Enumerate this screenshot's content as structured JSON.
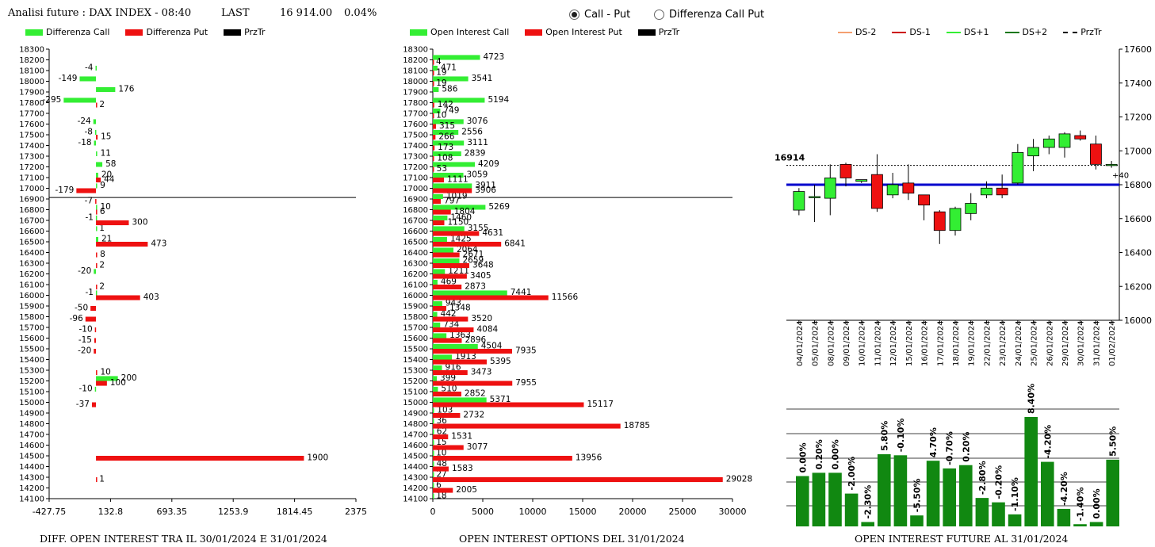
{
  "header": {
    "title": "Analisi future : DAX INDEX - 08:40",
    "last_label": "LAST",
    "last_value": "16 914.00",
    "change": "0.04%"
  },
  "view_toggle": {
    "options": [
      {
        "label": "Call - Put",
        "selected": true
      },
      {
        "label": "Differenza Call Put",
        "selected": false
      }
    ]
  },
  "colors": {
    "green": "#33ee33",
    "red": "#ee1111",
    "dark_green": "#118811",
    "blue": "#0000cc",
    "price_line": "#000000"
  },
  "panel1": {
    "legend": [
      {
        "label": "Differenza Call",
        "color": "#33ee33"
      },
      {
        "label": "Differenza Put",
        "color": "#ee1111"
      },
      {
        "label": "PrzTr",
        "color": "#000000"
      }
    ],
    "footer": "DIFF. OPEN INTEREST TRA IL 30/01/2024 E 31/01/2024"
  },
  "panel2": {
    "legend": [
      {
        "label": "Open Interest Call",
        "color": "#33ee33"
      },
      {
        "label": "Open Interest Put",
        "color": "#ee1111"
      },
      {
        "label": "PrzTr",
        "color": "#000000"
      }
    ],
    "footer": "OPEN INTEREST OPTIONS DEL 31/01/2024"
  },
  "panel3": {
    "legend": [
      {
        "label": "DS-2",
        "color": "#f4a070",
        "style": "solid"
      },
      {
        "label": "DS-1",
        "color": "#cc0000",
        "style": "solid"
      },
      {
        "label": "DS+1",
        "color": "#33ee33",
        "style": "solid"
      },
      {
        "label": "DS+2",
        "color": "#117711",
        "style": "solid"
      },
      {
        "label": "PrzTr",
        "color": "#000000",
        "style": "dashed"
      }
    ]
  },
  "panel4": {
    "footer": "OPEN INTEREST FUTURE AL 31/01/2024"
  },
  "chart_data": [
    {
      "type": "bar",
      "orientation": "horizontal",
      "strikes": [
        "18300",
        "18200",
        "18100",
        "18000",
        "17900",
        "17800",
        "17700",
        "17600",
        "17500",
        "17400",
        "17300",
        "17200",
        "17100",
        "17000",
        "16900",
        "16800",
        "16700",
        "16600",
        "16500",
        "16400",
        "16300",
        "16200",
        "16100",
        "16000",
        "15900",
        "15800",
        "15700",
        "15600",
        "15500",
        "15400",
        "15300",
        "15200",
        "15100",
        "15000",
        "14900",
        "14800",
        "14700",
        "14600",
        "14500",
        "14400",
        "14300",
        "14200",
        "14100"
      ],
      "series": [
        {
          "name": "Differenza Call",
          "values": [
            null,
            null,
            -4,
            -149,
            176,
            -295,
            null,
            -24,
            -8,
            -18,
            11,
            58,
            20,
            9,
            null,
            10,
            -1,
            1,
            21,
            null,
            null,
            -20,
            null,
            -1,
            null,
            null,
            null,
            null,
            null,
            null,
            null,
            200,
            -10,
            null,
            null,
            null,
            null,
            null,
            null,
            null,
            null,
            null,
            null
          ]
        },
        {
          "name": "Differenza Put",
          "values": [
            null,
            null,
            null,
            null,
            null,
            2,
            null,
            null,
            15,
            null,
            null,
            null,
            44,
            -179,
            -7,
            6,
            300,
            null,
            473,
            8,
            2,
            null,
            2,
            403,
            -50,
            -96,
            -10,
            -15,
            -20,
            null,
            10,
            100,
            null,
            -37,
            null,
            null,
            null,
            null,
            1900,
            null,
            1,
            null,
            null
          ]
        }
      ],
      "xlim": [
        -427.75,
        2375
      ],
      "xticks": [
        "-427.75",
        "132.8",
        "693.35",
        "1253.9",
        "1814.45",
        "2375"
      ],
      "price_level": 16914
    },
    {
      "type": "bar",
      "orientation": "horizontal",
      "strikes": [
        "18300",
        "18200",
        "18100",
        "18000",
        "17900",
        "17800",
        "17700",
        "17600",
        "17500",
        "17400",
        "17300",
        "17200",
        "17100",
        "17000",
        "16900",
        "16800",
        "16700",
        "16600",
        "16500",
        "16400",
        "16300",
        "16200",
        "16100",
        "16000",
        "15900",
        "15800",
        "15700",
        "15600",
        "15500",
        "15400",
        "15300",
        "15200",
        "15100",
        "15000",
        "14900",
        "14800",
        "14700",
        "14600",
        "14500",
        "14400",
        "14300",
        "14200",
        "14100"
      ],
      "series": [
        {
          "name": "Open Interest Call",
          "values": [
            null,
            4723,
            471,
            3541,
            586,
            5194,
            749,
            3076,
            2556,
            3111,
            2839,
            4209,
            3059,
            3911,
            1019,
            5269,
            1460,
            3155,
            1425,
            2064,
            2659,
            1211,
            469,
            7441,
            943,
            442,
            734,
            1363,
            4504,
            1913,
            916,
            399,
            510,
            5371,
            103,
            36,
            62,
            15,
            10,
            48,
            27,
            6,
            18
          ]
        },
        {
          "name": "Open Interest Put",
          "values": [
            null,
            4,
            19,
            19,
            null,
            142,
            10,
            315,
            266,
            173,
            108,
            53,
            1111,
            3906,
            797,
            1804,
            1150,
            4631,
            6841,
            2671,
            3648,
            3405,
            2873,
            11566,
            1348,
            3520,
            4084,
            2896,
            7935,
            5395,
            3473,
            7955,
            2852,
            15117,
            2732,
            18785,
            1531,
            3077,
            13956,
            1583,
            29028,
            2005,
            null
          ]
        }
      ],
      "xlim": [
        0,
        30000
      ],
      "xticks": [
        "0",
        "5000",
        "10000",
        "15000",
        "20000",
        "25000",
        "30000"
      ],
      "price_level": 16914
    },
    {
      "type": "candlestick",
      "dates": [
        "04/01/2024",
        "05/01/2024",
        "08/01/2024",
        "09/01/2024",
        "10/01/2024",
        "11/01/2024",
        "12/01/2024",
        "15/01/2024",
        "16/01/2024",
        "17/01/2024",
        "18/01/2024",
        "19/01/2024",
        "22/01/2024",
        "23/01/2024",
        "24/01/2024",
        "25/01/2024",
        "26/01/2024",
        "29/01/2024",
        "30/01/2024",
        "31/01/2024",
        "01/02/2024"
      ],
      "open": [
        16650,
        16730,
        16720,
        16920,
        16820,
        16860,
        16740,
        16810,
        16740,
        16640,
        16530,
        16630,
        16740,
        16780,
        16810,
        16970,
        17020,
        17020,
        17090,
        17040,
        16920
      ],
      "high": [
        16780,
        16800,
        16920,
        16930,
        16830,
        16980,
        16870,
        16920,
        16740,
        16650,
        16670,
        16750,
        16820,
        16860,
        17040,
        17070,
        17090,
        17110,
        17120,
        17090,
        16940
      ],
      "low": [
        16620,
        16580,
        16620,
        16790,
        16810,
        16640,
        16720,
        16710,
        16590,
        16450,
        16500,
        16590,
        16720,
        16720,
        16800,
        16880,
        16980,
        16960,
        17060,
        16890,
        16900
      ],
      "close": [
        16760,
        16730,
        16840,
        16840,
        16830,
        16660,
        16800,
        16750,
        16680,
        16530,
        16660,
        16690,
        16780,
        16740,
        16990,
        17020,
        17070,
        17100,
        17070,
        16920,
        16920
      ],
      "ylim": [
        16000,
        17600
      ],
      "yticks": [
        "17600",
        "17400",
        "17200",
        "17000",
        "16800",
        "16600",
        "16400",
        "16200",
        "16000"
      ],
      "price_label": "16914",
      "change_label": "+40",
      "blue_line_level": 16800
    },
    {
      "type": "bar",
      "values": [
        0.0,
        0.2,
        0.0,
        -2.0,
        -2.3,
        5.8,
        -0.1,
        -5.5,
        4.7,
        -0.7,
        0.2,
        -2.8,
        -0.2,
        -1.1,
        8.4,
        -4.2,
        -4.2,
        -1.4,
        0.0,
        5.5
      ],
      "labels": [
        "0.00%",
        "0.20%",
        "0.00%",
        "-2.00%",
        "-2.30%",
        "5.80%",
        "-0.10%",
        "-5.50%",
        "4.70%",
        "-0.70%",
        "0.20%",
        "-2.80%",
        "-0.20%",
        "-1.10%",
        "8.40%",
        "-4.20%",
        "-4.20%",
        "-1.40%",
        "0.00%",
        "5.50%"
      ],
      "bar_heights_rel": [
        0.46,
        0.49,
        0.49,
        0.3,
        0.04,
        0.66,
        0.65,
        0.1,
        0.6,
        0.53,
        0.56,
        0.26,
        0.22,
        0.11,
        1.0,
        0.59,
        0.16,
        0.02,
        0.04,
        0.61
      ]
    }
  ]
}
